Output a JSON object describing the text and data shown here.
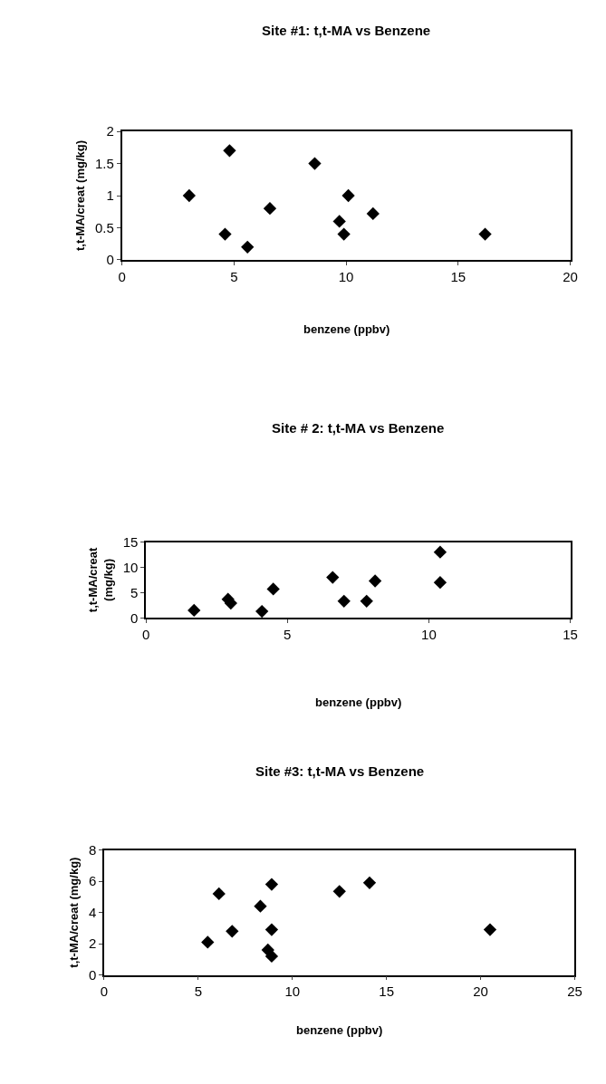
{
  "chart_data": [
    {
      "type": "scatter",
      "title": "Site #1: t,t-MA vs Benzene",
      "xlabel": "benzene (ppbv)",
      "ylabel": "t,t-MA/creat (mg/kg)",
      "xlim": [
        0,
        20
      ],
      "xticks": [
        0,
        5,
        10,
        15,
        20
      ],
      "ylim": [
        0,
        2
      ],
      "yticks": [
        0,
        0.5,
        1,
        1.5,
        2
      ],
      "marker": "diamond",
      "series": [
        {
          "color": "#000000",
          "x": [
            3.0,
            4.6,
            4.8,
            5.6,
            6.6,
            8.6,
            9.7,
            9.9,
            10.1,
            11.2,
            16.2
          ],
          "values": [
            1.0,
            0.4,
            1.7,
            0.2,
            0.8,
            1.5,
            0.6,
            0.4,
            1.0,
            0.72,
            0.4
          ]
        }
      ]
    },
    {
      "type": "scatter",
      "title": "Site # 2: t,t-MA vs Benzene",
      "xlabel": "benzene (ppbv)",
      "ylabel": "t,t-MA/creat\n(mg/kg)",
      "xlim": [
        0,
        15
      ],
      "xticks": [
        0,
        5,
        10,
        15
      ],
      "ylim": [
        0,
        15
      ],
      "yticks": [
        0,
        5,
        10,
        15
      ],
      "marker": "diamond",
      "series": [
        {
          "color": "#000000",
          "x": [
            1.7,
            2.9,
            3.0,
            4.1,
            4.5,
            6.6,
            7.0,
            7.8,
            8.1,
            10.4,
            10.4
          ],
          "values": [
            1.5,
            3.7,
            2.9,
            1.3,
            5.7,
            8.0,
            3.3,
            3.3,
            7.3,
            13.0,
            7.0
          ]
        }
      ]
    },
    {
      "type": "scatter",
      "title": "Site #3: t,t-MA vs Benzene",
      "xlabel": "benzene (ppbv)",
      "ylabel": "t,t-MA/creat (mg/kg)",
      "xlim": [
        0,
        25
      ],
      "xticks": [
        0,
        5,
        10,
        15,
        20,
        25
      ],
      "ylim": [
        0,
        8
      ],
      "yticks": [
        0,
        2,
        4,
        6,
        8
      ],
      "marker": "diamond",
      "series": [
        {
          "color": "#000000",
          "x": [
            5.5,
            6.1,
            6.8,
            8.3,
            8.7,
            8.9,
            8.9,
            8.9,
            12.5,
            14.1,
            20.5
          ],
          "values": [
            2.1,
            5.2,
            2.8,
            4.4,
            1.6,
            1.2,
            2.9,
            5.8,
            5.35,
            5.9,
            2.9
          ]
        }
      ]
    }
  ]
}
